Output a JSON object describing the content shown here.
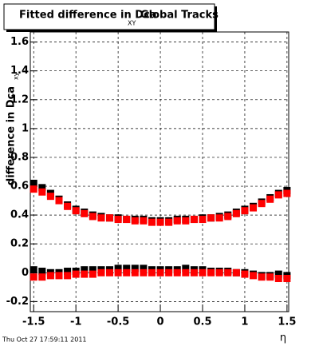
{
  "chart_data": {
    "type": "scatter",
    "title": "Fitted difference in Dca",
    "title_subscript": "XY",
    "title_suffix": "Global Tracks",
    "y_label": "difference in Dca",
    "y_label_subscript": "xy",
    "x_label": "η",
    "footer": "Thu Oct 27 17:59:11 2011",
    "x": [
      -1.5,
      -1.4,
      -1.3,
      -1.2,
      -1.1,
      -1.0,
      -0.9,
      -0.8,
      -0.7,
      -0.6,
      -0.5,
      -0.4,
      -0.3,
      -0.2,
      -0.1,
      0,
      0.1,
      0.2,
      0.3,
      0.4,
      0.5,
      0.6,
      0.7,
      0.8,
      0.9,
      1.0,
      1.1,
      1.2,
      1.3,
      1.4,
      1.5
    ],
    "series": [
      {
        "color": "#000000",
        "values": [
          0.62,
          0.59,
          0.55,
          0.51,
          0.47,
          0.44,
          0.42,
          0.4,
          0.39,
          0.38,
          0.38,
          0.37,
          0.37,
          0.37,
          0.36,
          0.36,
          0.36,
          0.37,
          0.37,
          0.37,
          0.38,
          0.38,
          0.39,
          0.4,
          0.42,
          0.44,
          0.46,
          0.49,
          0.52,
          0.55,
          0.57
        ]
      },
      {
        "color": "#000000",
        "values": [
          0.02,
          0.01,
          0.0,
          0.0,
          0.01,
          0.01,
          0.02,
          0.02,
          0.02,
          0.02,
          0.03,
          0.03,
          0.03,
          0.03,
          0.02,
          0.02,
          0.02,
          0.02,
          0.03,
          0.02,
          0.02,
          0.01,
          0.01,
          0.01,
          0.0,
          0.0,
          -0.01,
          -0.02,
          -0.02,
          -0.01,
          -0.02
        ]
      },
      {
        "color": "#ff0000",
        "values": [
          0.58,
          0.56,
          0.53,
          0.5,
          0.46,
          0.43,
          0.41,
          0.39,
          0.38,
          0.38,
          0.37,
          0.37,
          0.36,
          0.36,
          0.35,
          0.35,
          0.35,
          0.36,
          0.36,
          0.37,
          0.37,
          0.38,
          0.38,
          0.39,
          0.41,
          0.43,
          0.45,
          0.48,
          0.51,
          0.54,
          0.55
        ]
      },
      {
        "color": "#ff0000",
        "values": [
          -0.03,
          -0.03,
          -0.02,
          -0.02,
          -0.02,
          -0.01,
          -0.01,
          -0.01,
          0.0,
          0.0,
          0.0,
          0.0,
          0.0,
          0.0,
          0.0,
          0.0,
          0.0,
          0.0,
          0.0,
          0.0,
          0.0,
          0.0,
          0.0,
          0.0,
          0.0,
          -0.01,
          -0.02,
          -0.03,
          -0.03,
          -0.04,
          -0.04
        ]
      }
    ],
    "xlim": [
      -1.54,
      1.52
    ],
    "ylim": [
      -0.27,
      1.67
    ],
    "xticks": [
      -1.5,
      -1,
      -0.5,
      0,
      0.5,
      1,
      1.5
    ],
    "yticks": [
      -0.2,
      0,
      0.2,
      0.4,
      0.6,
      0.8,
      1,
      1.2,
      1.4,
      1.6
    ],
    "grid": true
  }
}
